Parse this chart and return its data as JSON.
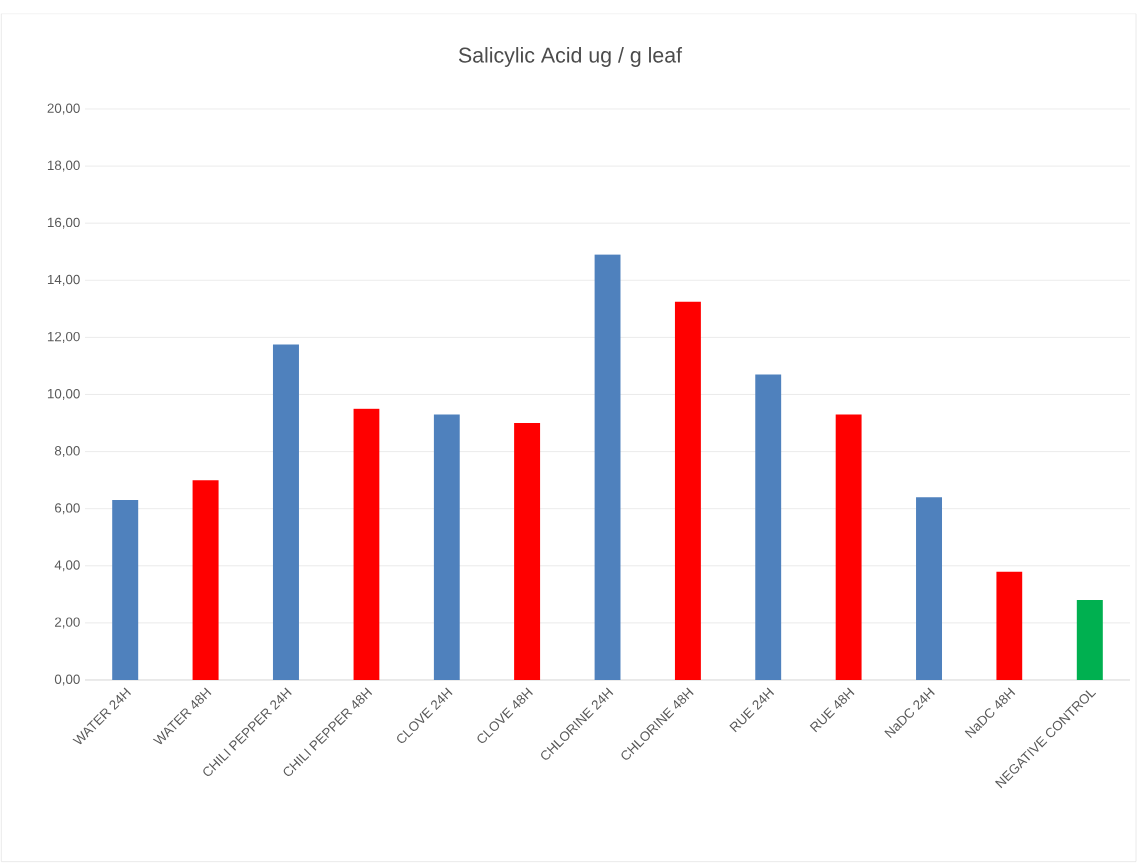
{
  "chart_data": {
    "type": "bar",
    "title": "Salicylic Acid ug / g leaf",
    "categories": [
      "WATER 24H",
      "WATER 48H",
      "CHILI PEPPER 24H",
      "CHILI PEPPER 48H",
      "CLOVE 24H",
      "CLOVE 48H",
      "CHLORINE 24H",
      "CHLORINE 48H",
      "RUE 24H",
      "RUE 48H",
      "NaDC 24H",
      "NaDC 48H",
      "NEGATIVE CONTROL"
    ],
    "values": [
      6.3,
      7.0,
      11.75,
      9.5,
      9.3,
      9.0,
      14.9,
      13.25,
      10.7,
      9.3,
      6.4,
      3.8,
      2.8
    ],
    "colors": [
      "#4f81bd",
      "#ff0000",
      "#4f81bd",
      "#ff0000",
      "#4f81bd",
      "#ff0000",
      "#4f81bd",
      "#ff0000",
      "#4f81bd",
      "#ff0000",
      "#4f81bd",
      "#ff0000",
      "#00b050"
    ],
    "ylim": [
      0,
      20
    ],
    "yticks": [
      {
        "value": 0,
        "label": "0,00"
      },
      {
        "value": 2,
        "label": "2,00"
      },
      {
        "value": 4,
        "label": "4,00"
      },
      {
        "value": 6,
        "label": "6,00"
      },
      {
        "value": 8,
        "label": "8,00"
      },
      {
        "value": 10,
        "label": "10,00"
      },
      {
        "value": 12,
        "label": "12,00"
      },
      {
        "value": 14,
        "label": "14,00"
      },
      {
        "value": 16,
        "label": "16,00"
      },
      {
        "value": 18,
        "label": "18,00"
      },
      {
        "value": 20,
        "label": "20,00"
      }
    ],
    "grid": "y"
  }
}
